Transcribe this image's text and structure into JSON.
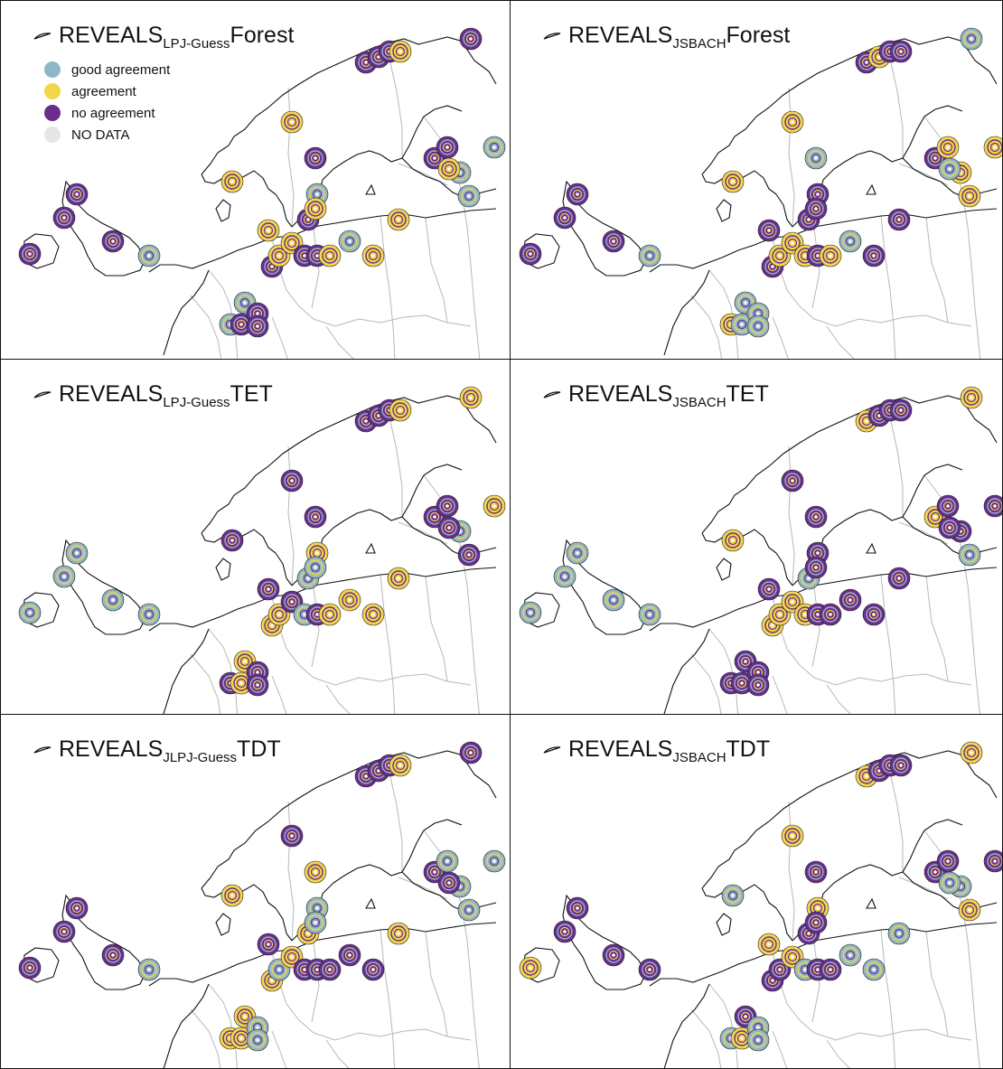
{
  "legend": {
    "items": [
      {
        "label": "good agreement",
        "color": "#8fb7c9"
      },
      {
        "label": "agreement",
        "color": "#f2d64b"
      },
      {
        "label": "no agreement",
        "color": "#6b2d8c"
      },
      {
        "label": "NO DATA",
        "color": "#e6e6e6"
      }
    ]
  },
  "panels": [
    {
      "title_main": "REVEALS",
      "title_sub": "LPJ-Guess",
      "title_suffix": "Forest"
    },
    {
      "title_main": "REVEALS",
      "title_sub": "JSBACH",
      "title_suffix": "Forest"
    },
    {
      "title_main": "REVEALS",
      "title_sub": "LPJ-Guess",
      "title_suffix": "TET"
    },
    {
      "title_main": "REVEALS",
      "title_sub": "JSBACH",
      "title_suffix": "TET"
    },
    {
      "title_main": "REVEALS",
      "title_sub": "JLPJ-Guess",
      "title_suffix": "TDT"
    },
    {
      "title_main": "REVEALS",
      "title_sub": "JSBACH",
      "title_suffix": "TDT"
    }
  ],
  "colors": {
    "good": "#8fb7c9",
    "agree": "#f2d64b",
    "none": "#6b2d8c",
    "nodata": "#e6e6e6",
    "coast": "#111111",
    "border": "#b8b8b8"
  }
}
